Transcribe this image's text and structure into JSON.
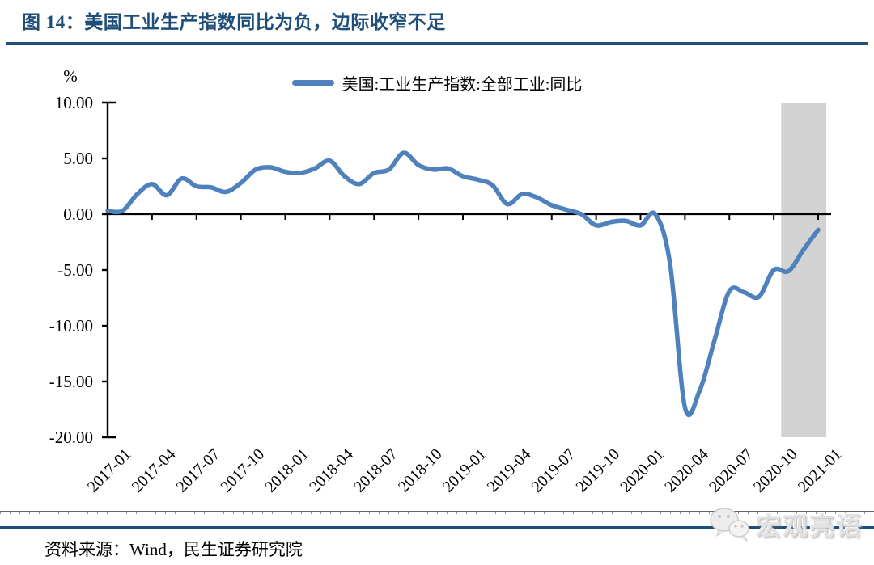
{
  "figure": {
    "title": "图 14：美国工业生产指数同比为负，边际收窄不足",
    "source_text": "资料来源：Wind，民生证券研究院",
    "watermark_text": "宏观亮语"
  },
  "colors": {
    "accent_navy": "#1F4E79",
    "series_blue": "#4F81BD",
    "band_gray": "#D3D3D3",
    "axis_black": "#000000"
  },
  "chart_data": {
    "type": "line",
    "title": "",
    "unit_label": "%",
    "legend_position": "top-center",
    "grid": false,
    "ylim": [
      -20,
      10
    ],
    "yticks": [
      10,
      5,
      0,
      -5,
      -10,
      -15,
      -20
    ],
    "ytick_labels": [
      "10.00",
      "5.00",
      "0.00",
      "-5.00",
      "-10.00",
      "-15.00",
      "-20.00"
    ],
    "xtick_every": 3,
    "x": [
      "2017-01",
      "2017-02",
      "2017-03",
      "2017-04",
      "2017-05",
      "2017-06",
      "2017-07",
      "2017-08",
      "2017-09",
      "2017-10",
      "2017-11",
      "2017-12",
      "2018-01",
      "2018-02",
      "2018-03",
      "2018-04",
      "2018-05",
      "2018-06",
      "2018-07",
      "2018-08",
      "2018-09",
      "2018-10",
      "2018-11",
      "2018-12",
      "2019-01",
      "2019-02",
      "2019-03",
      "2019-04",
      "2019-05",
      "2019-06",
      "2019-07",
      "2019-08",
      "2019-09",
      "2019-10",
      "2019-11",
      "2019-12",
      "2020-01",
      "2020-02",
      "2020-03",
      "2020-04",
      "2020-05",
      "2020-06",
      "2020-07",
      "2020-08",
      "2020-09",
      "2020-10",
      "2020-11",
      "2020-12",
      "2021-01"
    ],
    "series": [
      {
        "name": "美国:工业生产指数:全部工业:同比",
        "color": "#4F81BD",
        "values": [
          0.3,
          0.3,
          1.8,
          2.7,
          1.7,
          3.2,
          2.5,
          2.4,
          2.0,
          2.8,
          4.0,
          4.2,
          3.8,
          3.7,
          4.1,
          4.8,
          3.4,
          2.7,
          3.7,
          4.0,
          5.5,
          4.4,
          4.0,
          4.1,
          3.4,
          3.1,
          2.6,
          0.9,
          1.8,
          1.5,
          0.8,
          0.4,
          0.0,
          -1.0,
          -0.7,
          -0.6,
          -1.0,
          0.0,
          -4.5,
          -17.3,
          -15.8,
          -11.3,
          -6.9,
          -7.0,
          -7.4,
          -5.0,
          -5.1,
          -3.2,
          -1.4
        ]
      }
    ],
    "highlight_band": {
      "from": "2020-11",
      "to": "2021-01",
      "color": "#D3D3D3"
    }
  }
}
